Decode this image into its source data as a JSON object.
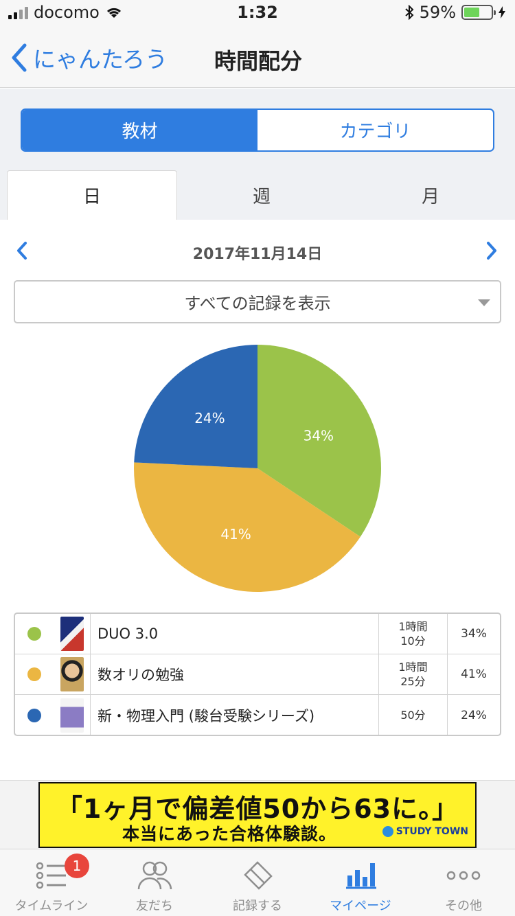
{
  "status_bar": {
    "carrier": "docomo",
    "time": "1:32",
    "battery": "59%",
    "battery_level": 0.59
  },
  "nav": {
    "back_label": "にゃんたろう",
    "title": "時間配分"
  },
  "segment": {
    "options": [
      "教材",
      "カテゴリ"
    ],
    "selected": "教材"
  },
  "period_tabs": {
    "items": [
      "日",
      "週",
      "月"
    ],
    "selected": "日"
  },
  "date": "2017年11月14日",
  "filter": {
    "value": "すべての記録を表示"
  },
  "chart_data": {
    "type": "pie",
    "slices": [
      {
        "label": "DUO 3.0",
        "value": 34,
        "display": "34%",
        "color": "#9bc34a"
      },
      {
        "label": "数オリの勉強",
        "value": 41,
        "display": "41%",
        "color": "#ebb642"
      },
      {
        "label": "新・物理入門 (駿台受験シリーズ)",
        "value": 24,
        "display": "24%",
        "color": "#2b67b3"
      }
    ]
  },
  "legend": {
    "rows": [
      {
        "name": "DUO 3.0",
        "duration": "1時間\n10分",
        "percent": "34%",
        "color": "#9bc34a"
      },
      {
        "name": "数オリの勉強",
        "duration": "1時間\n25分",
        "percent": "41%",
        "color": "#ebb642"
      },
      {
        "name": "新・物理入門 (駿台受験シリーズ)",
        "duration": "50分",
        "percent": "24%",
        "color": "#2b67b3"
      }
    ]
  },
  "ad": {
    "line1": "「1ヶ月で偏差値50から63に。」",
    "line2": "本当にあった合格体験談。",
    "logo": "STUDY TOWN"
  },
  "tab_bar": {
    "items": [
      {
        "label": "タイムライン",
        "icon": "list-icon",
        "badge": "1"
      },
      {
        "label": "友だち",
        "icon": "people-icon"
      },
      {
        "label": "記録する",
        "icon": "eraser-icon"
      },
      {
        "label": "マイページ",
        "icon": "bar-chart-icon"
      },
      {
        "label": "その他",
        "icon": "more-icon"
      }
    ],
    "selected": "マイページ"
  }
}
